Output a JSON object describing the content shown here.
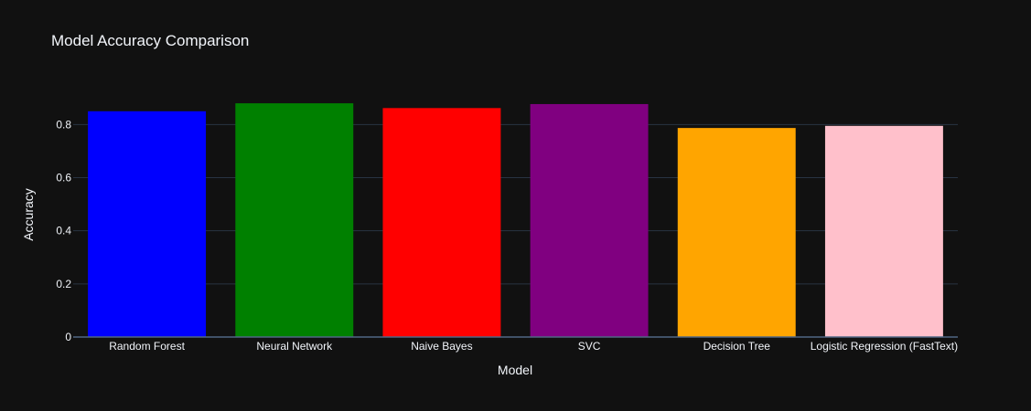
{
  "chart_data": {
    "type": "bar",
    "title": "Model Accuracy Comparison",
    "xlabel": "Model",
    "ylabel": "Accuracy",
    "categories": [
      "Random Forest",
      "Neural Network",
      "Naive Bayes",
      "SVC",
      "Decision Tree",
      "Logistic Regression (FastText)"
    ],
    "values": [
      0.85,
      0.88,
      0.862,
      0.877,
      0.787,
      0.795
    ],
    "colors": [
      "#0000ff",
      "#008000",
      "#ff0000",
      "#800080",
      "#ffa500",
      "#ffc0cb"
    ],
    "ylim": [
      0,
      0.925
    ],
    "yticks": [
      0,
      0.2,
      0.4,
      0.6,
      0.8
    ],
    "ytick_labels": [
      "0",
      "0.2",
      "0.4",
      "0.6",
      "0.8"
    ],
    "grid": true,
    "legend": false,
    "background": "#111111"
  }
}
